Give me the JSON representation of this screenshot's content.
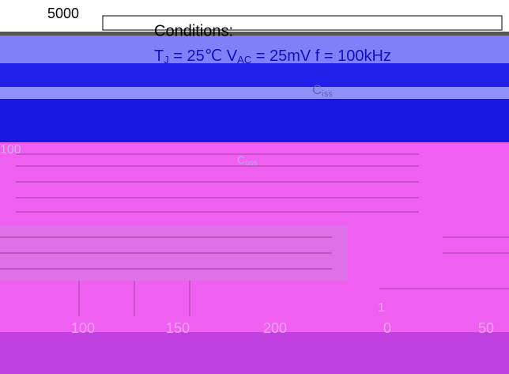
{
  "axis_labels": {
    "top": "5000",
    "left": [
      "100",
      "1"
    ],
    "bottom": [
      "100",
      "150",
      "200",
      "0",
      "50"
    ]
  },
  "conditions": {
    "title": "Conditions:",
    "line": [
      "T",
      "J",
      " = 25℃  V",
      "AC",
      " = 25mV  f = 100kHz"
    ]
  },
  "curve_labels": {
    "ciss": [
      "C",
      "iss"
    ],
    "coss": [
      "C",
      "oss"
    ]
  }
}
